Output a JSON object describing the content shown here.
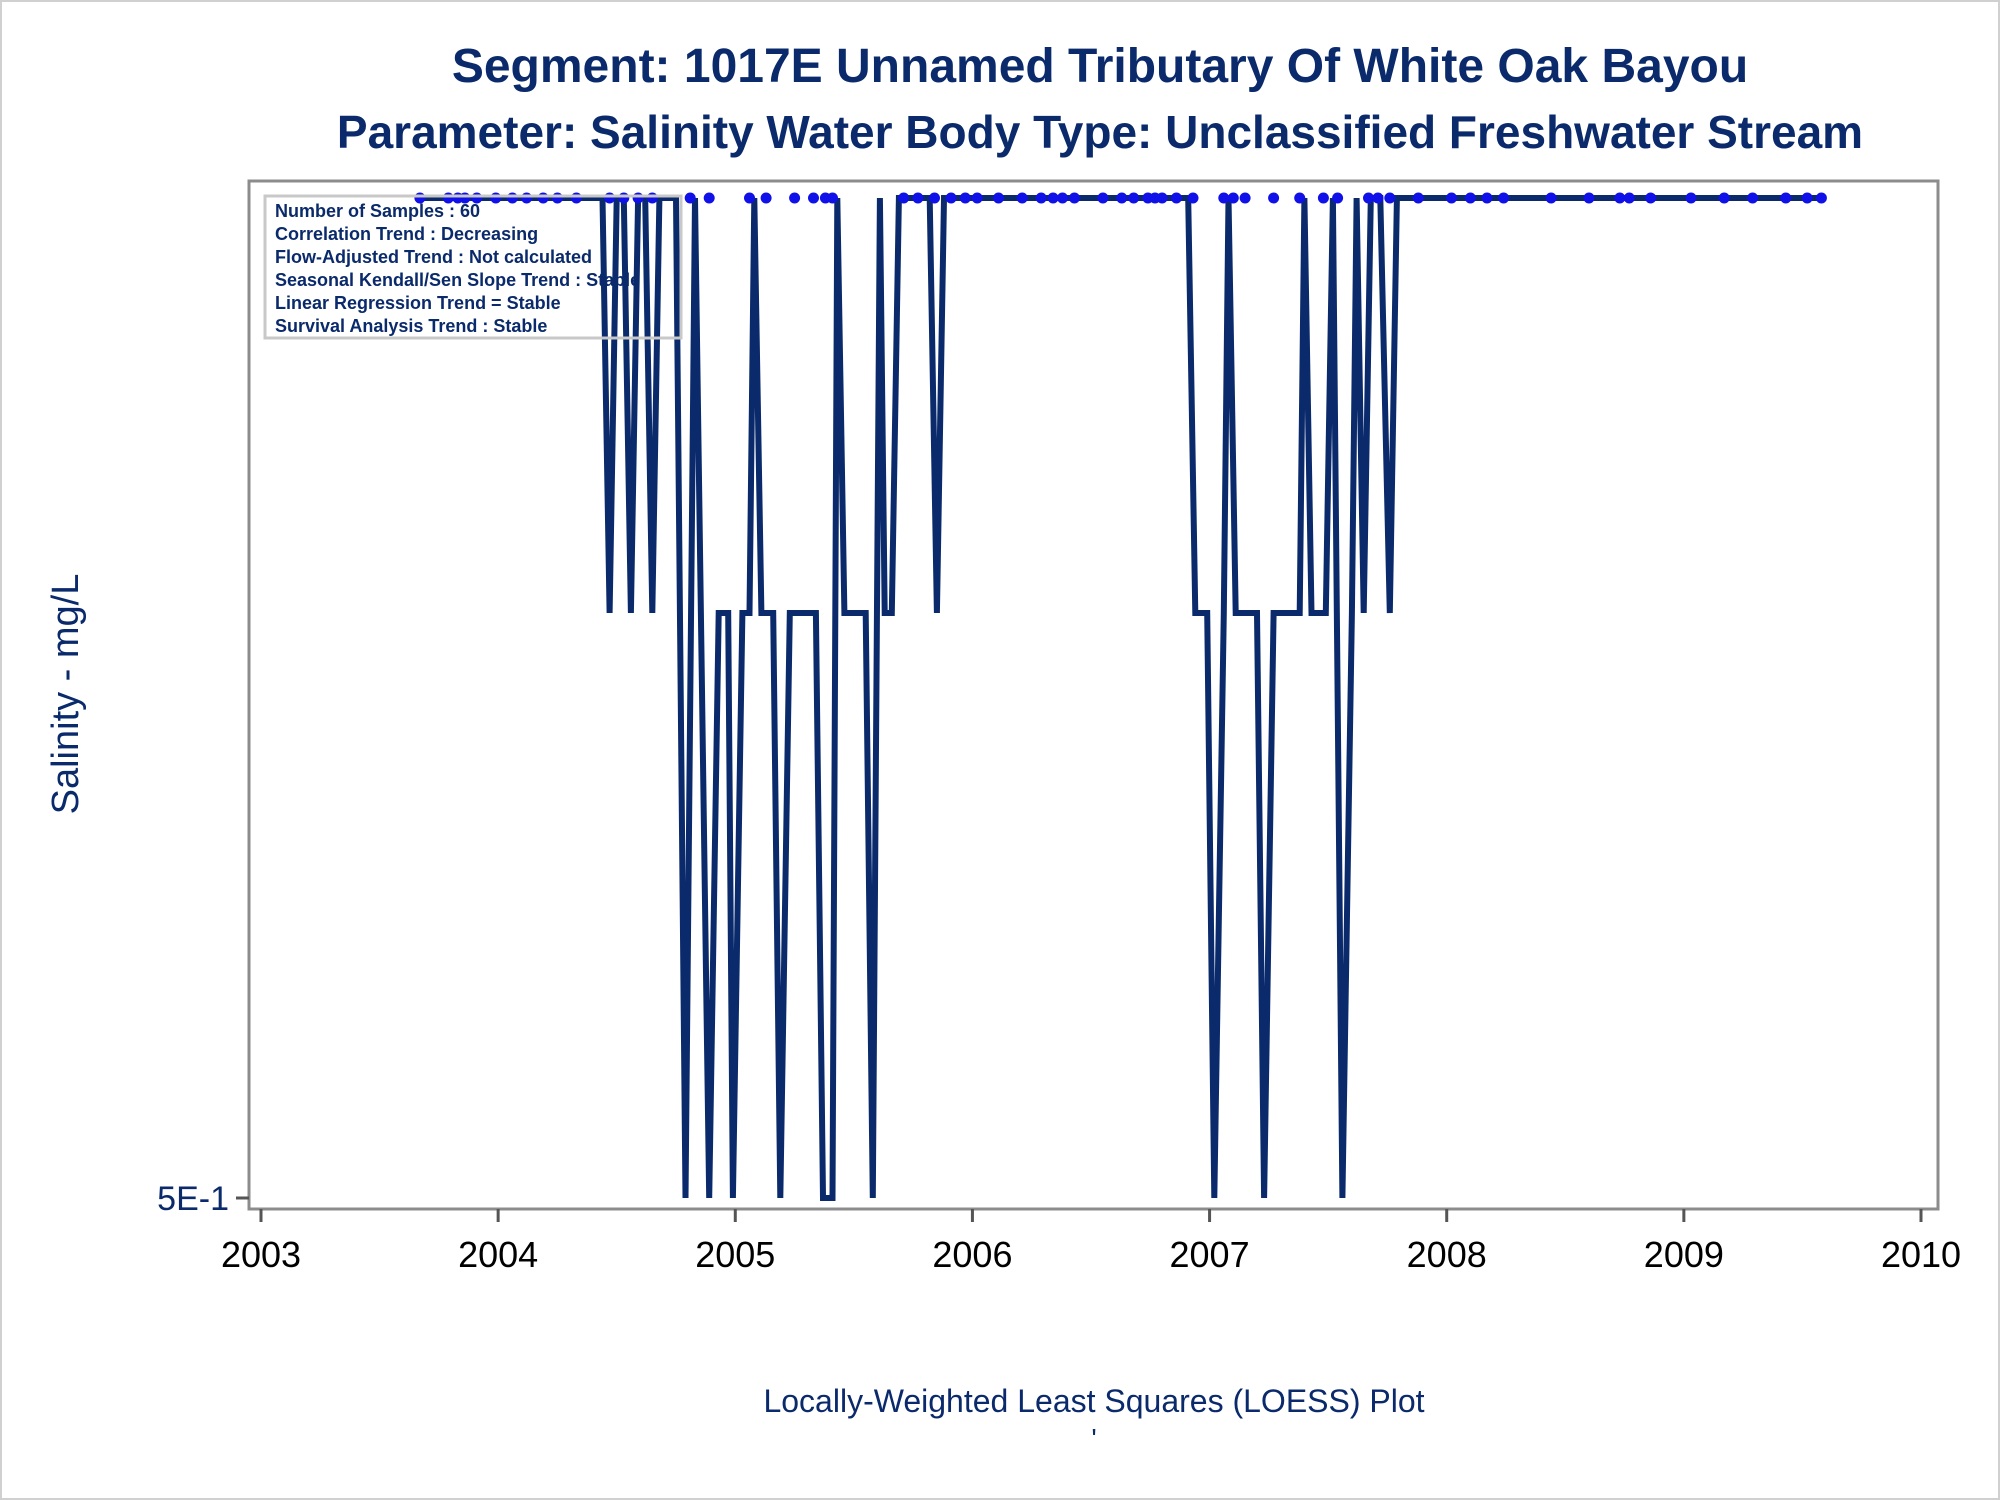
{
  "chart_data": {
    "type": "line",
    "title": "Segment: 1017E  Unnamed Tributary Of White Oak Bayou",
    "subtitle": "Parameter: Salinity   Water Body Type: Unclassified Freshwater Stream",
    "xlabel": "Locally-Weighted Least Squares (LOESS) Plot",
    "ylabel": "Salinity - mg/L",
    "footnote": "'",
    "x_range": [
      2003,
      2010
    ],
    "x_ticks": [
      "2003",
      "2004",
      "2005",
      "2006",
      "2007",
      "2008",
      "2009",
      "2010"
    ],
    "y_scale": "log",
    "y_tick_labels": [
      "5E-1"
    ],
    "grid": false,
    "stats_box": {
      "placement": "top-left",
      "lines": [
        "Number of Samples : 60",
        "Correlation Trend : Decreasing",
        "Flow-Adjusted Trend : Not calculated",
        "Seasonal Kendall/Sen Slope Trend : Stable",
        "Linear Regression Trend = Stable",
        "Survival Analysis Trend : Stable"
      ]
    },
    "line_color": "#0a2a6b",
    "marker_color": "#1010e8",
    "levels": {
      "top": 1.0,
      "mid": 0.75,
      "bottom": 0.5
    },
    "series_line": [
      [
        2003.67,
        1.0
      ],
      [
        2004.44,
        1.0
      ],
      [
        2004.47,
        0.75
      ],
      [
        2004.5,
        1.0
      ],
      [
        2004.53,
        1.0
      ],
      [
        2004.56,
        0.75
      ],
      [
        2004.59,
        1.0
      ],
      [
        2004.62,
        1.0
      ],
      [
        2004.65,
        0.75
      ],
      [
        2004.68,
        1.0
      ],
      [
        2004.75,
        1.0
      ],
      [
        2004.79,
        0.5
      ],
      [
        2004.83,
        1.0
      ],
      [
        2004.89,
        0.5
      ],
      [
        2004.93,
        0.75
      ],
      [
        2004.97,
        0.75
      ],
      [
        2004.99,
        0.5
      ],
      [
        2005.03,
        0.75
      ],
      [
        2005.06,
        0.75
      ],
      [
        2005.08,
        1.0
      ],
      [
        2005.11,
        0.75
      ],
      [
        2005.16,
        0.75
      ],
      [
        2005.19,
        0.5
      ],
      [
        2005.23,
        0.75
      ],
      [
        2005.34,
        0.75
      ],
      [
        2005.37,
        0.5
      ],
      [
        2005.41,
        0.5
      ],
      [
        2005.43,
        1.0
      ],
      [
        2005.46,
        0.75
      ],
      [
        2005.55,
        0.75
      ],
      [
        2005.58,
        0.5
      ],
      [
        2005.61,
        1.0
      ],
      [
        2005.63,
        0.75
      ],
      [
        2005.66,
        0.75
      ],
      [
        2005.69,
        1.0
      ],
      [
        2005.82,
        1.0
      ],
      [
        2005.85,
        0.75
      ],
      [
        2005.88,
        1.0
      ],
      [
        2006.91,
        1.0
      ],
      [
        2006.94,
        0.75
      ],
      [
        2006.99,
        0.75
      ],
      [
        2007.02,
        0.5
      ],
      [
        2007.06,
        0.75
      ],
      [
        2007.08,
        1.0
      ],
      [
        2007.11,
        0.75
      ],
      [
        2007.2,
        0.75
      ],
      [
        2007.23,
        0.5
      ],
      [
        2007.27,
        0.75
      ],
      [
        2007.38,
        0.75
      ],
      [
        2007.4,
        1.0
      ],
      [
        2007.43,
        0.75
      ],
      [
        2007.49,
        0.75
      ],
      [
        2007.52,
        1.0
      ],
      [
        2007.56,
        0.5
      ],
      [
        2007.6,
        0.75
      ],
      [
        2007.62,
        1.0
      ],
      [
        2007.65,
        0.75
      ],
      [
        2007.68,
        1.0
      ],
      [
        2007.72,
        1.0
      ],
      [
        2007.76,
        0.75
      ],
      [
        2007.79,
        1.0
      ],
      [
        2009.6,
        1.0
      ]
    ],
    "sample_dates": [
      2003.67,
      2003.79,
      2003.83,
      2003.86,
      2003.91,
      2003.99,
      2004.06,
      2004.12,
      2004.19,
      2004.25,
      2004.33,
      2004.47,
      2004.53,
      2004.59,
      2004.65,
      2004.81,
      2004.89,
      2005.06,
      2005.13,
      2005.25,
      2005.33,
      2005.38,
      2005.41,
      2005.71,
      2005.77,
      2005.84,
      2005.91,
      2005.97,
      2006.02,
      2006.11,
      2006.21,
      2006.29,
      2006.34,
      2006.38,
      2006.43,
      2006.55,
      2006.63,
      2006.68,
      2006.74,
      2006.77,
      2006.8,
      2006.86,
      2006.93,
      2007.06,
      2007.1,
      2007.15,
      2007.27,
      2007.38,
      2007.48,
      2007.54,
      2007.67,
      2007.71,
      2007.76,
      2007.88,
      2008.02,
      2008.1,
      2008.17,
      2008.24,
      2008.44,
      2008.6
    ],
    "sample_dates_late": [
      2008.73,
      2008.77,
      2008.86,
      2009.03,
      2009.17,
      2009.29,
      2009.43,
      2009.52,
      2009.58
    ]
  }
}
